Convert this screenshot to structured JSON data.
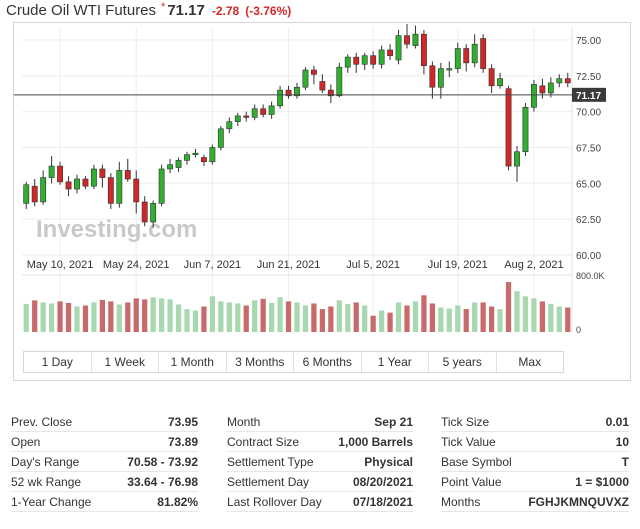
{
  "header": {
    "title": "Crude Oil WTI Futures",
    "star": "*",
    "price": "71.17",
    "change": "-2.78",
    "change_pct": "(-3.76%)"
  },
  "colors": {
    "up": "#2fae2f",
    "down": "#d02828",
    "vol_up": "#a8d8b0",
    "vol_down": "#c96a6a",
    "grid": "#eeeeee"
  },
  "chart_data": {
    "type": "candlestick",
    "watermark": "Investing.com",
    "yticks": [
      "75.00",
      "72.50",
      "70.00",
      "67.50",
      "65.00",
      "62.50",
      "60.00"
    ],
    "ytick_values": [
      75,
      72.5,
      70,
      67.5,
      65,
      62.5,
      60
    ],
    "ylim": [
      60,
      75.9
    ],
    "xticks": [
      "May 10, 2021",
      "May 24, 2021",
      "Jun 7, 2021",
      "Jun 21, 2021",
      "Jul 5, 2021",
      "Jul 19, 2021",
      "Aug 2, 2021"
    ],
    "xtick_index": [
      4,
      13,
      22,
      31,
      41,
      51,
      60
    ],
    "current_price": 71.17,
    "current_price_label": "71.17",
    "volume_label": "800.0K",
    "volume_zero_label": "0",
    "candles": [
      {
        "o": 63.6,
        "c": 64.9,
        "h": 65.1,
        "l": 63.2,
        "v": 0.55
      },
      {
        "o": 64.8,
        "c": 63.7,
        "h": 65.3,
        "l": 63.4,
        "v": 0.62
      },
      {
        "o": 63.7,
        "c": 65.4,
        "h": 65.9,
        "l": 63.5,
        "v": 0.58
      },
      {
        "o": 65.4,
        "c": 66.2,
        "h": 66.9,
        "l": 65.0,
        "v": 0.56
      },
      {
        "o": 66.2,
        "c": 65.1,
        "h": 66.5,
        "l": 64.9,
        "v": 0.6
      },
      {
        "o": 65.1,
        "c": 64.6,
        "h": 65.5,
        "l": 64.1,
        "v": 0.57
      },
      {
        "o": 64.6,
        "c": 65.3,
        "h": 65.6,
        "l": 64.3,
        "v": 0.5
      },
      {
        "o": 65.3,
        "c": 64.8,
        "h": 65.5,
        "l": 64.6,
        "v": 0.52
      },
      {
        "o": 64.8,
        "c": 66.0,
        "h": 66.3,
        "l": 64.6,
        "v": 0.58
      },
      {
        "o": 66.0,
        "c": 65.4,
        "h": 66.3,
        "l": 64.7,
        "v": 0.63
      },
      {
        "o": 65.4,
        "c": 63.6,
        "h": 65.7,
        "l": 63.2,
        "v": 0.6
      },
      {
        "o": 63.6,
        "c": 65.9,
        "h": 66.5,
        "l": 63.3,
        "v": 0.54
      },
      {
        "o": 65.9,
        "c": 65.3,
        "h": 66.7,
        "l": 65.1,
        "v": 0.58
      },
      {
        "o": 65.3,
        "c": 63.7,
        "h": 65.9,
        "l": 62.9,
        "v": 0.66
      },
      {
        "o": 63.7,
        "c": 62.3,
        "h": 64.1,
        "l": 62.0,
        "v": 0.64
      },
      {
        "o": 62.3,
        "c": 63.6,
        "h": 63.8,
        "l": 61.9,
        "v": 0.68
      },
      {
        "o": 63.6,
        "c": 66.0,
        "h": 66.3,
        "l": 63.4,
        "v": 0.66
      },
      {
        "o": 66.0,
        "c": 66.3,
        "h": 66.7,
        "l": 65.7,
        "v": 0.64
      },
      {
        "o": 66.1,
        "c": 66.6,
        "h": 66.8,
        "l": 65.8,
        "v": 0.54
      },
      {
        "o": 66.6,
        "c": 67.0,
        "h": 67.2,
        "l": 66.3,
        "v": 0.45
      },
      {
        "o": 67.0,
        "c": 67.1,
        "h": 67.4,
        "l": 66.8,
        "v": 0.42
      },
      {
        "o": 66.8,
        "c": 66.5,
        "h": 67.0,
        "l": 66.2,
        "v": 0.5
      },
      {
        "o": 66.5,
        "c": 67.5,
        "h": 67.7,
        "l": 66.3,
        "v": 0.7
      },
      {
        "o": 67.5,
        "c": 68.8,
        "h": 69.0,
        "l": 67.3,
        "v": 0.6
      },
      {
        "o": 68.8,
        "c": 69.3,
        "h": 69.6,
        "l": 68.5,
        "v": 0.58
      },
      {
        "o": 69.3,
        "c": 69.7,
        "h": 69.9,
        "l": 69.0,
        "v": 0.56
      },
      {
        "o": 69.7,
        "c": 69.6,
        "h": 70.0,
        "l": 69.3,
        "v": 0.52
      },
      {
        "o": 69.6,
        "c": 70.2,
        "h": 70.5,
        "l": 69.4,
        "v": 0.62
      },
      {
        "o": 70.2,
        "c": 69.8,
        "h": 70.5,
        "l": 69.6,
        "v": 0.65
      },
      {
        "o": 69.8,
        "c": 70.4,
        "h": 70.7,
        "l": 69.5,
        "v": 0.57
      },
      {
        "o": 70.4,
        "c": 71.5,
        "h": 71.8,
        "l": 70.2,
        "v": 0.68
      },
      {
        "o": 71.5,
        "c": 71.1,
        "h": 71.8,
        "l": 70.9,
        "v": 0.6
      },
      {
        "o": 71.1,
        "c": 71.7,
        "h": 72.0,
        "l": 70.9,
        "v": 0.58
      },
      {
        "o": 71.7,
        "c": 72.9,
        "h": 73.1,
        "l": 71.5,
        "v": 0.52
      },
      {
        "o": 72.9,
        "c": 72.6,
        "h": 73.2,
        "l": 71.9,
        "v": 0.56
      },
      {
        "o": 72.1,
        "c": 71.5,
        "h": 72.6,
        "l": 71.3,
        "v": 0.45
      },
      {
        "o": 71.5,
        "c": 71.1,
        "h": 71.9,
        "l": 70.6,
        "v": 0.5
      },
      {
        "o": 71.1,
        "c": 73.1,
        "h": 73.4,
        "l": 71.0,
        "v": 0.62
      },
      {
        "o": 73.1,
        "c": 73.8,
        "h": 74.0,
        "l": 72.7,
        "v": 0.55
      },
      {
        "o": 73.8,
        "c": 73.3,
        "h": 74.1,
        "l": 72.7,
        "v": 0.58
      },
      {
        "o": 73.3,
        "c": 73.9,
        "h": 74.1,
        "l": 72.9,
        "v": 0.52
      },
      {
        "o": 73.9,
        "c": 73.3,
        "h": 74.2,
        "l": 73.0,
        "v": 0.32
      },
      {
        "o": 73.3,
        "c": 74.3,
        "h": 74.6,
        "l": 73.0,
        "v": 0.42
      },
      {
        "o": 74.3,
        "c": 73.9,
        "h": 74.7,
        "l": 73.6,
        "v": 0.38
      },
      {
        "o": 73.6,
        "c": 75.3,
        "h": 75.7,
        "l": 73.3,
        "v": 0.58
      },
      {
        "o": 75.3,
        "c": 74.7,
        "h": 76.1,
        "l": 74.4,
        "v": 0.52
      },
      {
        "o": 74.6,
        "c": 75.4,
        "h": 76.0,
        "l": 74.4,
        "v": 0.6
      },
      {
        "o": 75.4,
        "c": 73.2,
        "h": 75.7,
        "l": 72.6,
        "v": 0.72
      },
      {
        "o": 73.2,
        "c": 71.7,
        "h": 73.5,
        "l": 70.9,
        "v": 0.56
      },
      {
        "o": 71.7,
        "c": 73.0,
        "h": 73.4,
        "l": 70.9,
        "v": 0.48
      },
      {
        "o": 73.0,
        "c": 73.0,
        "h": 73.5,
        "l": 72.4,
        "v": 0.46
      },
      {
        "o": 73.0,
        "c": 74.4,
        "h": 74.8,
        "l": 72.7,
        "v": 0.52
      },
      {
        "o": 74.4,
        "c": 73.4,
        "h": 74.7,
        "l": 72.8,
        "v": 0.45
      },
      {
        "o": 73.4,
        "c": 74.7,
        "h": 75.4,
        "l": 73.1,
        "v": 0.58
      },
      {
        "o": 75.1,
        "c": 73.0,
        "h": 75.4,
        "l": 72.7,
        "v": 0.58
      },
      {
        "o": 73.0,
        "c": 71.8,
        "h": 73.3,
        "l": 71.3,
        "v": 0.5
      },
      {
        "o": 71.8,
        "c": 72.3,
        "h": 72.7,
        "l": 71.6,
        "v": 0.45
      },
      {
        "o": 71.6,
        "c": 66.2,
        "h": 71.8,
        "l": 65.9,
        "v": 0.98
      },
      {
        "o": 66.2,
        "c": 67.2,
        "h": 67.6,
        "l": 65.1,
        "v": 0.8
      },
      {
        "o": 67.2,
        "c": 70.3,
        "h": 70.6,
        "l": 66.9,
        "v": 0.7
      },
      {
        "o": 70.3,
        "c": 71.9,
        "h": 72.2,
        "l": 70.0,
        "v": 0.66
      },
      {
        "o": 71.8,
        "c": 71.3,
        "h": 72.3,
        "l": 70.9,
        "v": 0.6
      },
      {
        "o": 71.3,
        "c": 72.0,
        "h": 72.4,
        "l": 71.0,
        "v": 0.55
      },
      {
        "o": 72.0,
        "c": 72.3,
        "h": 72.6,
        "l": 71.7,
        "v": 0.5
      },
      {
        "o": 72.3,
        "c": 72.0,
        "h": 72.7,
        "l": 71.7,
        "v": 0.48
      }
    ],
    "events": [
      "May 10, 2021",
      "May 24, 2021",
      "Jun 7, 2021",
      "Jun 21, 2021",
      "Jul 5, 2021",
      "Jul 19, 2021",
      "Aug 2, 2021"
    ]
  },
  "ranges": [
    "1 Day",
    "1 Week",
    "1 Month",
    "3 Months",
    "6 Months",
    "1 Year",
    "5 years",
    "Max"
  ],
  "stats": {
    "col1": [
      {
        "label": "Prev. Close",
        "value": "73.95"
      },
      {
        "label": "Open",
        "value": "73.89"
      },
      {
        "label": "Day's Range",
        "value": "70.58 - 73.92"
      },
      {
        "label": "52 wk Range",
        "value": "33.64 - 76.98"
      },
      {
        "label": "1-Year Change",
        "value": "81.82%"
      }
    ],
    "col2": [
      {
        "label": "Month",
        "value": "Sep 21"
      },
      {
        "label": "Contract Size",
        "value": "1,000 Barrels"
      },
      {
        "label": "Settlement Type",
        "value": "Physical"
      },
      {
        "label": "Settlement Day",
        "value": "08/20/2021"
      },
      {
        "label": "Last Rollover Day",
        "value": "07/18/2021"
      }
    ],
    "col3": [
      {
        "label": "Tick Size",
        "value": "0.01"
      },
      {
        "label": "Tick Value",
        "value": "10"
      },
      {
        "label": "Base Symbol",
        "value": "T"
      },
      {
        "label": "Point Value",
        "value": "1 = $1000"
      },
      {
        "label": "Months",
        "value": "FGHJKMNQUVXZ"
      }
    ]
  }
}
